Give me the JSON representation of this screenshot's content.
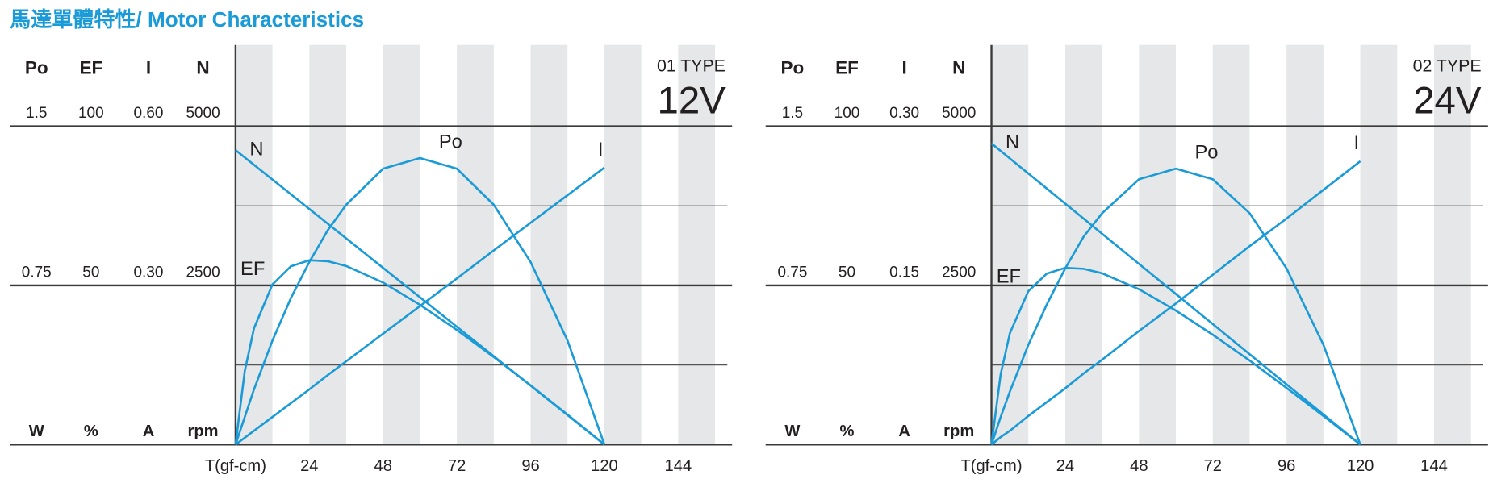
{
  "title": "馬達單體特性/ Motor Characteristics",
  "chart_data": [
    {
      "type": "line",
      "type_label": "01 TYPE",
      "voltage": "12V",
      "xlim": [
        0,
        160
      ],
      "xticks": [
        {
          "value": 0,
          "label": "T(gf-cm)"
        },
        24,
        48,
        72,
        96,
        120,
        144
      ],
      "x": [
        0,
        3,
        6,
        12,
        18,
        24,
        30,
        36,
        48,
        60,
        72,
        84,
        96,
        108,
        120
      ],
      "axes": [
        {
          "name": "Po",
          "unit": "W",
          "ylim": [
            0,
            1.5
          ],
          "yticks": [
            0.75,
            1.5
          ]
        },
        {
          "name": "EF",
          "unit": "%",
          "ylim": [
            0,
            100
          ],
          "yticks": [
            50,
            100
          ]
        },
        {
          "name": "I",
          "unit": "A",
          "ylim": [
            0,
            0.6
          ],
          "yticks": [
            {
              "value": 0.3,
              "label": "0.30"
            },
            {
              "value": 0.6,
              "label": "0.60"
            }
          ]
        },
        {
          "name": "N",
          "unit": "rpm",
          "ylim": [
            0,
            5000
          ],
          "yticks": [
            2500,
            5000
          ]
        }
      ],
      "series": [
        {
          "name": "Po",
          "color": "#1a9bd7",
          "values": [
            0,
            0.13,
            0.26,
            0.49,
            0.69,
            0.86,
            1.01,
            1.13,
            1.3,
            1.35,
            1.3,
            1.13,
            0.86,
            0.49,
            0
          ]
        },
        {
          "name": "EF",
          "color": "#1a9bd7",
          "values": [
            0,
            23.1,
            36.5,
            50.3,
            56.0,
            57.9,
            57.6,
            56.1,
            50.9,
            43.9,
            36.0,
            27.5,
            18.6,
            9.4,
            0
          ]
        },
        {
          "name": "I",
          "color": "#1a9bd7",
          "values": [
            0,
            0.013,
            0.026,
            0.052,
            0.078,
            0.104,
            0.131,
            0.157,
            0.209,
            0.261,
            0.313,
            0.366,
            0.418,
            0.47,
            0.522
          ]
        },
        {
          "name": "N",
          "color": "#1a9bd7",
          "values": [
            4625,
            4509,
            4394,
            4163,
            3931,
            3700,
            3469,
            3238,
            2775,
            2313,
            1850,
            1388,
            925,
            463,
            0
          ]
        }
      ]
    },
    {
      "type": "line",
      "type_label": "02 TYPE",
      "voltage": "24V",
      "xlim": [
        0,
        160
      ],
      "xticks": [
        {
          "value": 0,
          "label": "T(gf-cm)"
        },
        24,
        48,
        72,
        96,
        120,
        144
      ],
      "x": [
        0,
        3,
        6,
        12,
        18,
        24,
        30,
        36,
        48,
        60,
        72,
        84,
        96,
        108,
        120
      ],
      "axes": [
        {
          "name": "Po",
          "unit": "W",
          "ylim": [
            0,
            1.5
          ],
          "yticks": [
            0.75,
            1.5
          ]
        },
        {
          "name": "EF",
          "unit": "%",
          "ylim": [
            0,
            100
          ],
          "yticks": [
            50,
            100
          ]
        },
        {
          "name": "I",
          "unit": "A",
          "ylim": [
            0,
            0.3
          ],
          "yticks": [
            0.15,
            {
              "value": 0.3,
              "label": "0.30"
            }
          ]
        },
        {
          "name": "N",
          "unit": "rpm",
          "ylim": [
            0,
            5000
          ],
          "yticks": [
            2500,
            5000
          ]
        }
      ],
      "series": [
        {
          "name": "Po",
          "color": "#1a9bd7",
          "values": [
            0,
            0.13,
            0.25,
            0.47,
            0.66,
            0.83,
            0.98,
            1.09,
            1.25,
            1.3,
            1.25,
            1.09,
            0.83,
            0.47,
            0
          ]
        },
        {
          "name": "EF",
          "color": "#1a9bd7",
          "values": [
            0,
            22.1,
            35.0,
            48.2,
            53.7,
            55.5,
            55.2,
            53.8,
            48.8,
            42.1,
            34.5,
            26.4,
            17.8,
            9.0,
            0
          ]
        },
        {
          "name": "I",
          "color": "#1a9bd7",
          "values": [
            0,
            0.007,
            0.013,
            0.027,
            0.04,
            0.053,
            0.067,
            0.08,
            0.107,
            0.133,
            0.16,
            0.187,
            0.213,
            0.24,
            0.267
          ]
        },
        {
          "name": "N",
          "color": "#1a9bd7",
          "values": [
            4730,
            4612,
            4494,
            4257,
            4021,
            3784,
            3548,
            3311,
            2838,
            2365,
            1892,
            1419,
            946,
            473,
            0
          ]
        }
      ]
    }
  ]
}
